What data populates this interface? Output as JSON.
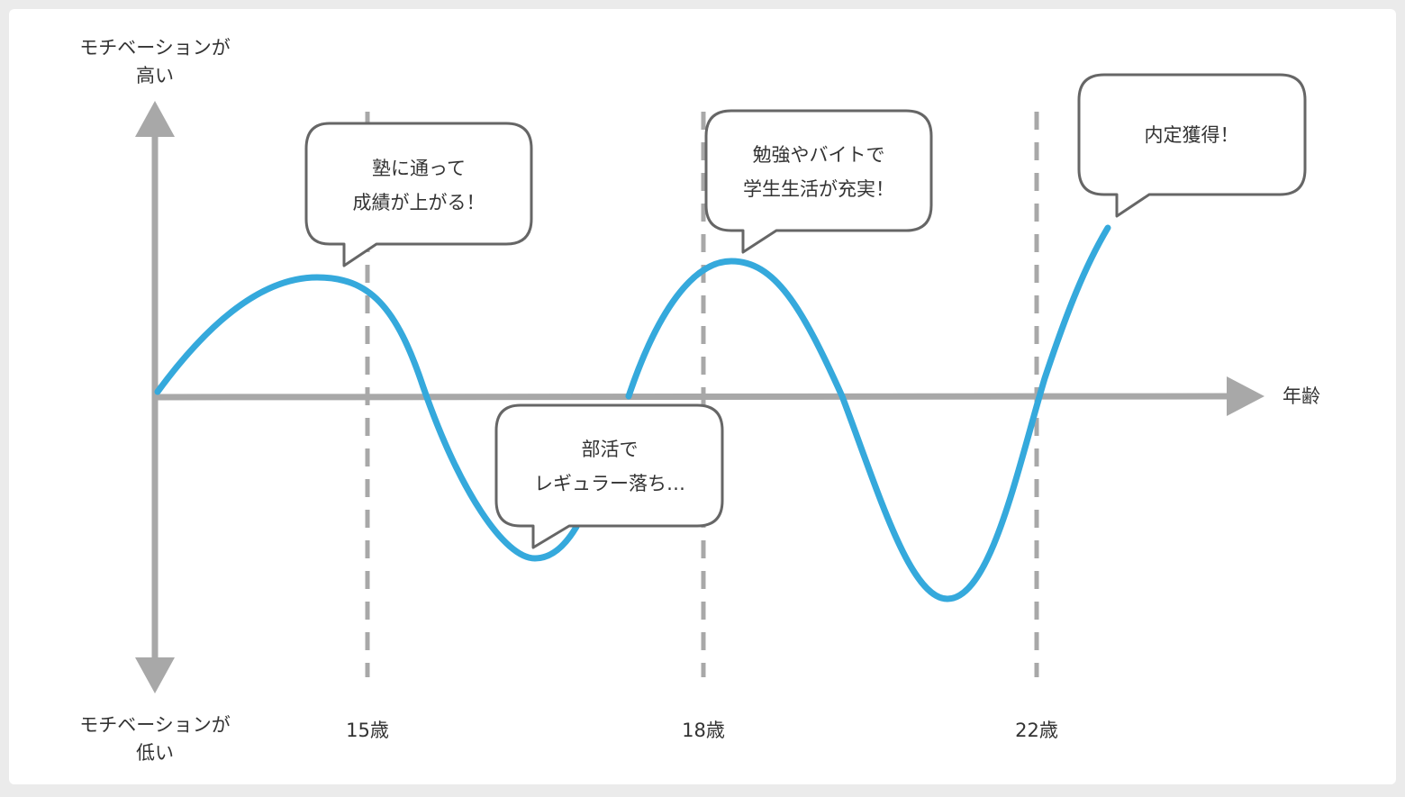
{
  "diagram": {
    "y_axis": {
      "top_label": [
        "モチベーションが",
        "高い"
      ],
      "bottom_label": [
        "モチベーションが",
        "低い"
      ]
    },
    "x_axis": {
      "label": "年齢",
      "ticks": [
        "15歳",
        "18歳",
        "22歳"
      ]
    },
    "bubbles": [
      {
        "id": "juku",
        "lines": [
          "塾に通って",
          "成績が上がる！"
        ]
      },
      {
        "id": "bukatsu",
        "lines": [
          "部活で",
          "レギュラー落ち…"
        ]
      },
      {
        "id": "benkyo",
        "lines": [
          "勉強やバイトで",
          "学生生活が充実！"
        ]
      },
      {
        "id": "naitei",
        "lines": [
          "内定獲得！"
        ]
      }
    ],
    "colors": {
      "background": "#ebebeb",
      "panel": "#ffffff",
      "axis": "#a8a8a8",
      "curve": "#35a9dc",
      "bubble_stroke": "#666666",
      "text": "#333333"
    }
  }
}
